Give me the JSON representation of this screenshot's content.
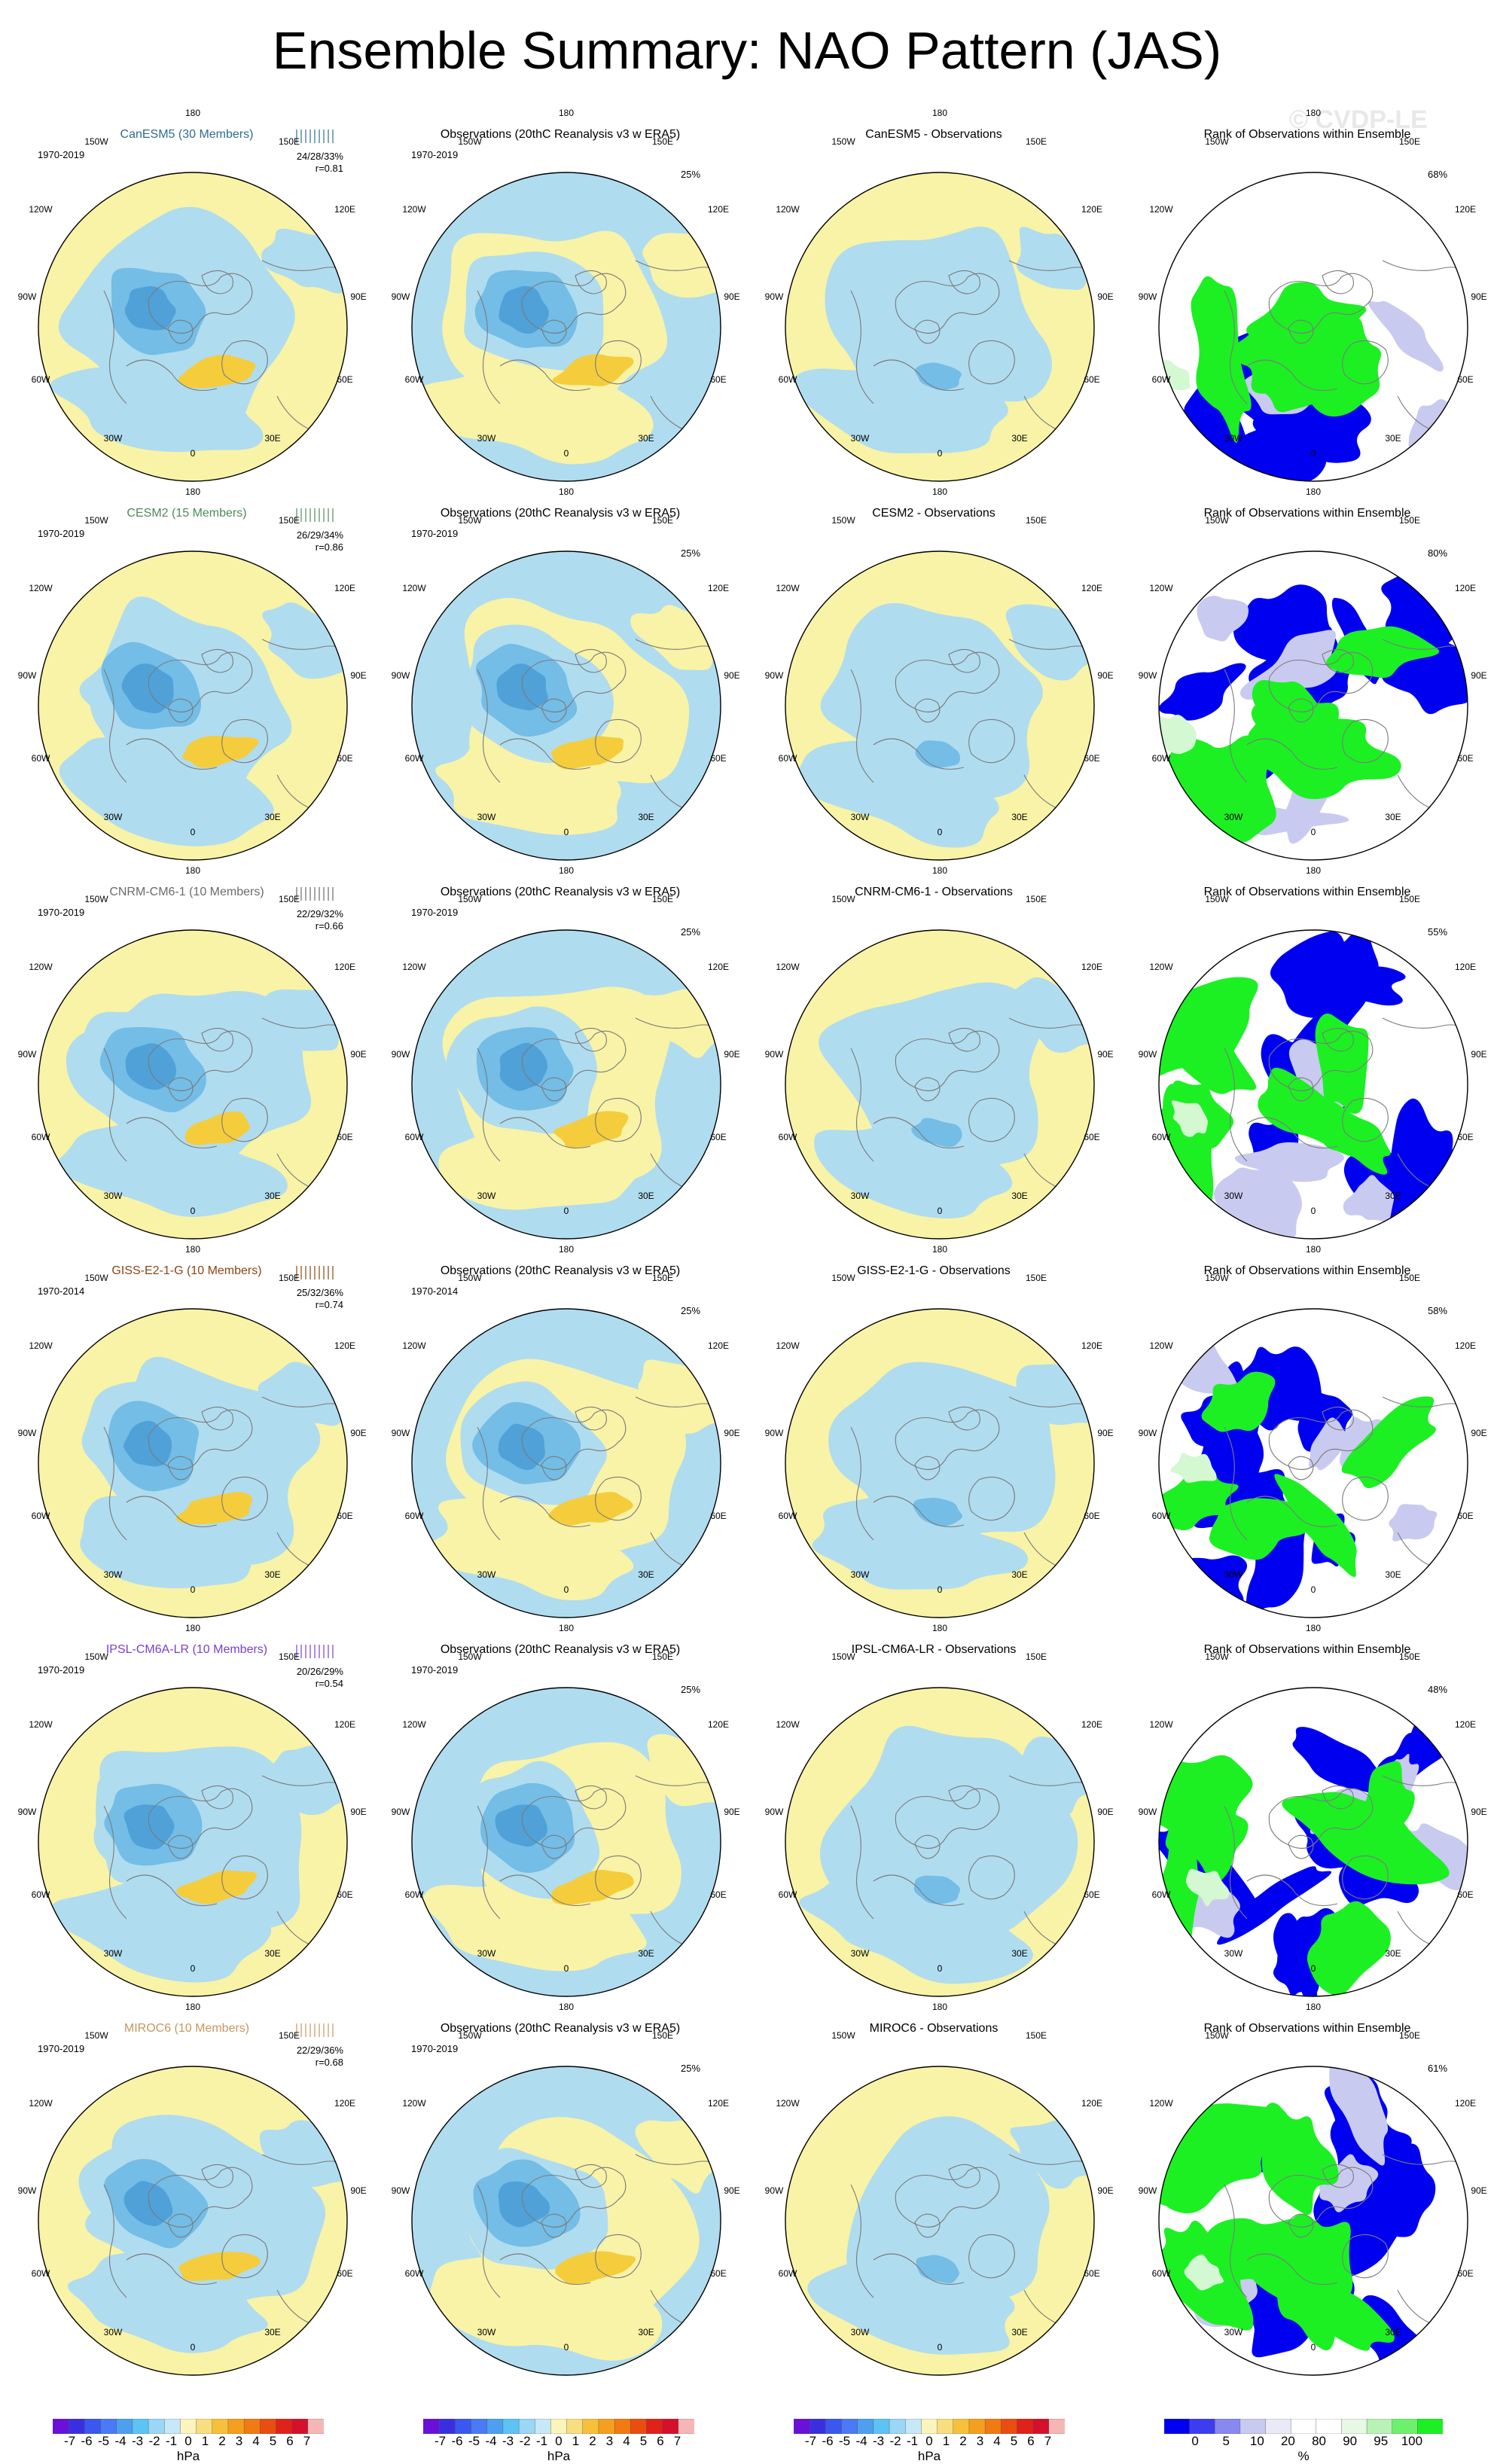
{
  "title": "Ensemble Summary: NAO Pattern (JAS)",
  "watermark": "© CVDP-LE",
  "colors": {
    "land_pos": "#f8f3a6",
    "neg1": "#b0dcef",
    "neg2": "#73bde6",
    "neg3": "#4fa1d8",
    "pos2": "#f5cc3b",
    "rank_low": "#0000f0",
    "rank_mid": "#c9caf0",
    "rank_high": "#1cf023",
    "rank_hi2": "#d4f8d2",
    "coast": "#7b7b7b"
  },
  "longitude_labels": {
    "lon180": "180",
    "lon150w": "150W",
    "lon150e": "150E",
    "lon120w": "120W",
    "lon120e": "120E",
    "lon90w": "90W",
    "lon90e": "90E",
    "lon60w": "60W",
    "lon60e": "60E",
    "lon30w": "30W",
    "lon30e": "30E",
    "lon0": "0"
  },
  "obs_title": "Observations (20thC Reanalysis v3 w ERA5)",
  "rank_title": "Rank of Observations within Ensemble",
  "rows": [
    {
      "model_title": "CanESM5 (30 Members)",
      "model_color": "#2e6d8e",
      "period": "1970-2019",
      "stats1": "24/28/33%",
      "stats2": "r=0.81",
      "obs_period": "1970-2019",
      "obs_pct": "25%",
      "diff_title": "CanESM5 - Observations",
      "rank_pct": "68%",
      "variant": 0
    },
    {
      "model_title": "CESM2 (15 Members)",
      "model_color": "#4f8a5a",
      "period": "1970-2019",
      "stats1": "26/29/34%",
      "stats2": "r=0.86",
      "obs_period": "1970-2019",
      "obs_pct": "25%",
      "diff_title": "CESM2 - Observations",
      "rank_pct": "80%",
      "variant": 1
    },
    {
      "model_title": "CNRM-CM6-1 (10 Members)",
      "model_color": "#6b6b6b",
      "period": "1970-2019",
      "stats1": "22/29/32%",
      "stats2": "r=0.66",
      "obs_period": "1970-2019",
      "obs_pct": "25%",
      "diff_title": "CNRM-CM6-1 - Observations",
      "rank_pct": "55%",
      "variant": 2
    },
    {
      "model_title": "GISS-E2-1-G (10 Members)",
      "model_color": "#8b4513",
      "period": "1970-2014",
      "stats1": "25/32/36%",
      "stats2": "r=0.74",
      "obs_period": "1970-2014",
      "obs_pct": "25%",
      "diff_title": "GISS-E2-1-G - Observations",
      "rank_pct": "58%",
      "variant": 3
    },
    {
      "model_title": "IPSL-CM6A-LR (10 Members)",
      "model_color": "#7a3fd1",
      "period": "1970-2019",
      "stats1": "20/26/29%",
      "stats2": "r=0.54",
      "obs_period": "1970-2019",
      "obs_pct": "25%",
      "diff_title": "IPSL-CM6A-LR - Observations",
      "rank_pct": "48%",
      "variant": 4
    },
    {
      "model_title": "MIROC6 (10 Members)",
      "model_color": "#c8975d",
      "period": "1970-2019",
      "stats1": "22/29/36%",
      "stats2": "r=0.68",
      "obs_period": "1970-2019",
      "obs_pct": "25%",
      "diff_title": "MIROC6 - Observations",
      "rank_pct": "61%",
      "variant": 5
    }
  ],
  "colorbar_hpa": {
    "colors": [
      "#6a10d8",
      "#3a2fe0",
      "#3a57f0",
      "#4a7af5",
      "#4e9ff0",
      "#5cc3f5",
      "#9ad6f5",
      "#c6e8f7",
      "#fbf5bd",
      "#f9de7f",
      "#f6c03b",
      "#f59f1f",
      "#f27a12",
      "#ea4d10",
      "#e0221a",
      "#d4102a",
      "#f7b6b6"
    ],
    "ticks": [
      "-7",
      "-6",
      "-5",
      "-4",
      "-3",
      "-2",
      "-1",
      "0",
      "1",
      "2",
      "3",
      "4",
      "5",
      "6",
      "7"
    ],
    "unit": "hPa"
  },
  "colorbar_rank": {
    "colors": [
      "#0000f0",
      "#3c3cf0",
      "#8888f0",
      "#c9caf0",
      "#e9e9f8",
      "#ffffff",
      "#ffffff",
      "#e6f9e4",
      "#b8f2b5",
      "#6df06c",
      "#1cf023"
    ],
    "ticks": [
      "0",
      "5",
      "10",
      "20",
      "80",
      "90",
      "95",
      "100"
    ],
    "unit": "%"
  }
}
